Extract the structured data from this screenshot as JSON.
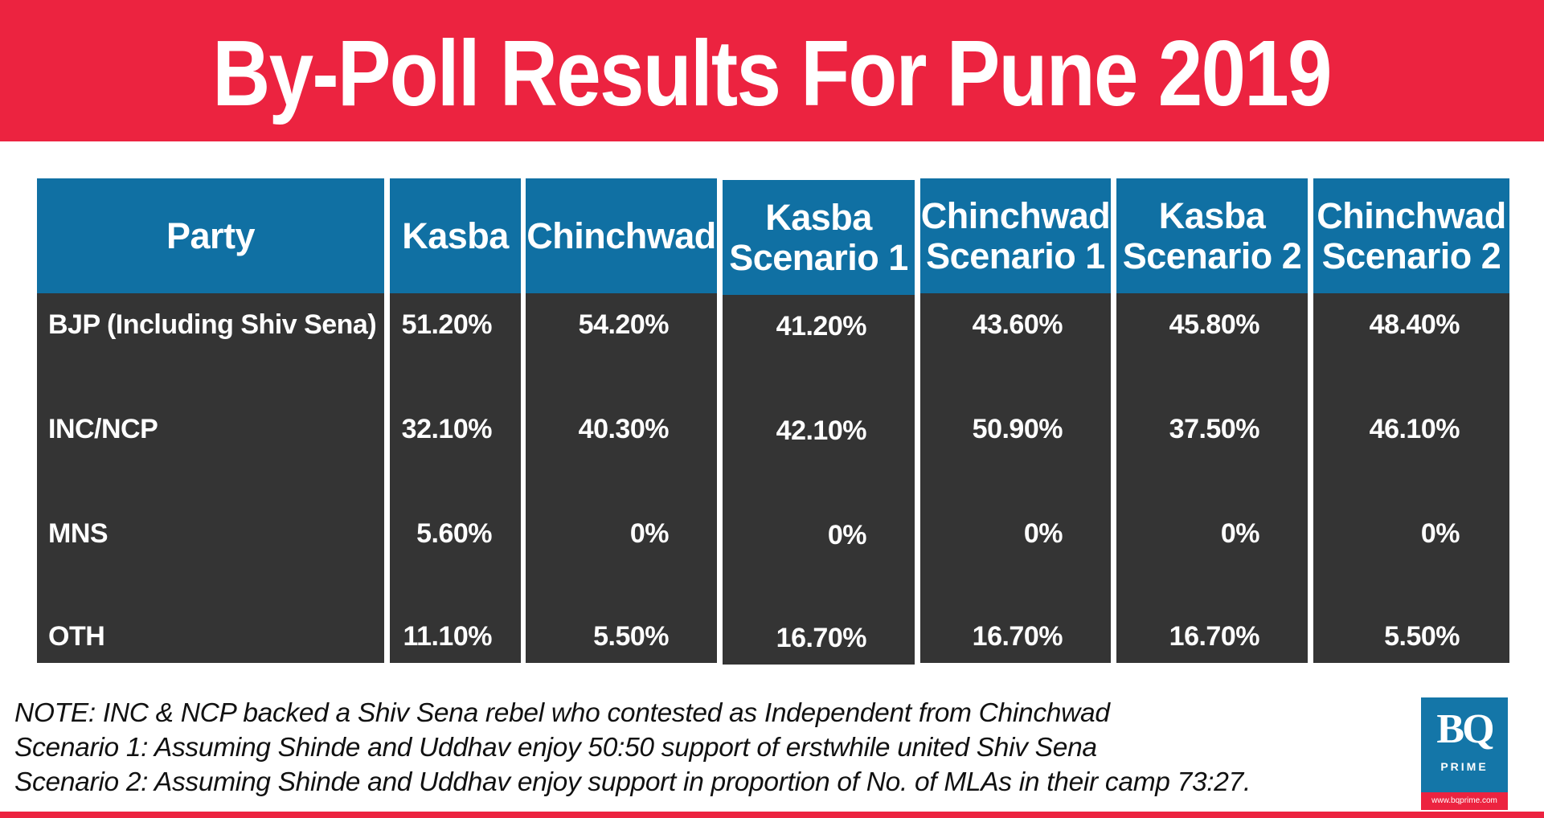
{
  "title": "By-Poll Results For Pune 2019",
  "colors": {
    "title_bg": "#ec2340",
    "header_bg": "#1070a3",
    "body_bg": "#343434",
    "text": "#ffffff"
  },
  "chart_data": {
    "type": "table",
    "title": "By-Poll Results For Pune 2019",
    "columns": [
      "Party",
      "Kasba",
      "Chinchwad",
      "Kasba\nScenario 1",
      "Chinchwad\nScenario 1",
      "Kasba\nScenario 2",
      "Chinchwad\nScenario 2"
    ],
    "rows": [
      [
        "BJP (Including Shiv Sena)",
        "51.20%",
        "54.20%",
        "41.20%",
        "43.60%",
        "45.80%",
        "48.40%"
      ],
      [
        "INC/NCP",
        "32.10%",
        "40.30%",
        "42.10%",
        "50.90%",
        "37.50%",
        "46.10%"
      ],
      [
        "MNS",
        "5.60%",
        "0%",
        "0%",
        "0%",
        "0%",
        "0%"
      ],
      [
        "OTH",
        "11.10%",
        "5.50%",
        "16.70%",
        "16.70%",
        "16.70%",
        "5.50%"
      ]
    ]
  },
  "notes": [
    "NOTE: INC & NCP backed a Shiv Sena rebel who contested as Independent from Chinchwad",
    "Scenario 1: Assuming Shinde and Uddhav enjoy 50:50 support of erstwhile united Shiv Sena",
    "Scenario 2: Assuming Shinde and Uddhav enjoy support in proportion of No. of MLAs in their camp 73:27."
  ],
  "logo": {
    "text": "BQ",
    "subtext": "PRIME",
    "url": "www.bqprime.com"
  }
}
